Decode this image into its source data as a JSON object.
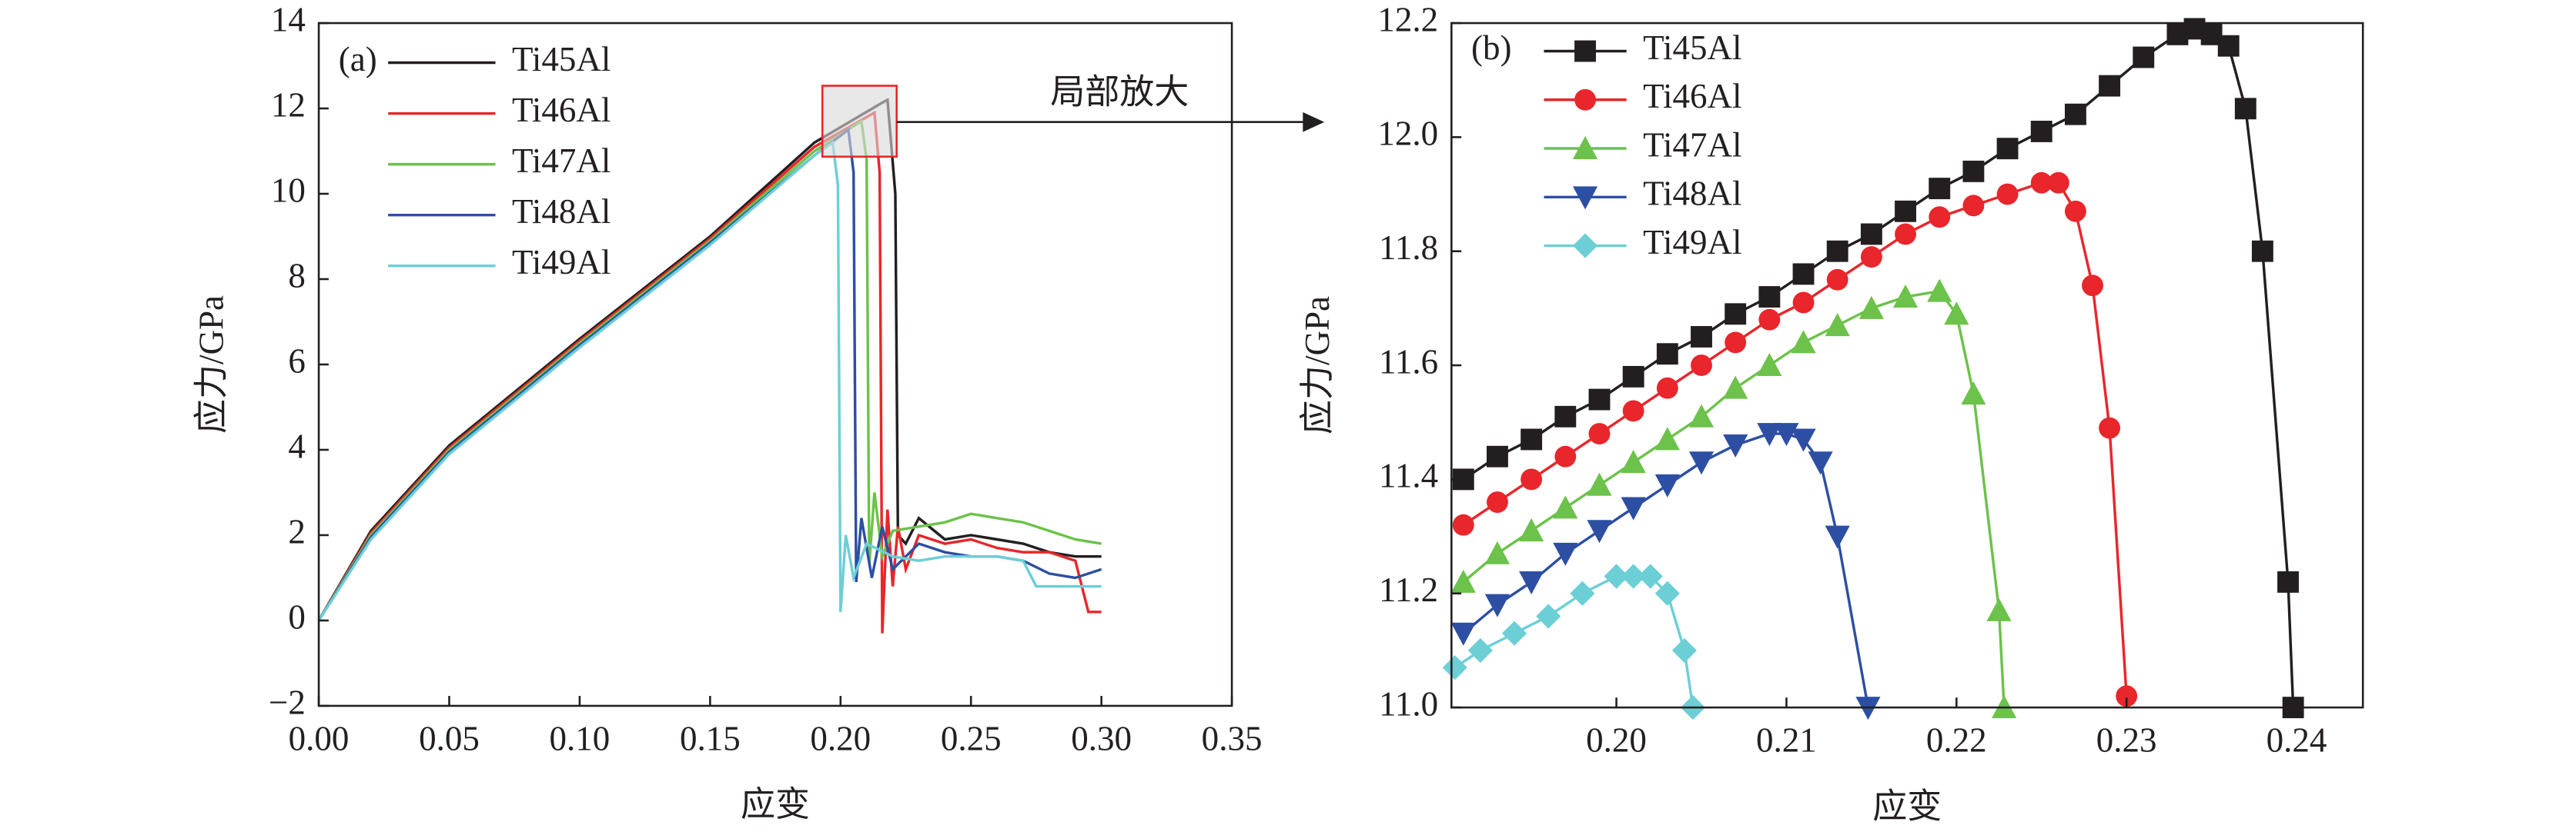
{
  "chart_data": [
    {
      "type": "line",
      "panel": "(a)",
      "x_label": "应变",
      "y_label": "应力/GPa",
      "annotation": "局部放大",
      "xlim": [
        0,
        0.35
      ],
      "ylim": [
        -2,
        14
      ],
      "xticks": [
        {
          "value": 0,
          "label": "0.00"
        },
        0.05,
        {
          "value": 0.1,
          "label": "0.10"
        },
        0.15,
        {
          "value": 0.2,
          "label": "0.20"
        },
        0.25,
        {
          "value": 0.3,
          "label": "0.30"
        },
        0.35
      ],
      "yticks": [
        {
          "value": -2,
          "label": "−2"
        },
        0,
        2,
        4,
        6,
        8,
        10,
        12,
        14
      ],
      "series": [
        {
          "name": "Ti45Al",
          "color": "#231f20",
          "x": [
            0,
            0.02,
            0.05,
            0.1,
            0.15,
            0.19,
            0.215,
            0.218,
            0.221,
            0.222,
            0.225,
            0.23,
            0.24,
            0.25,
            0.26,
            0.27,
            0.28,
            0.29,
            0.3
          ],
          "values": [
            0,
            2.1,
            4.1,
            6.6,
            9.0,
            11.2,
            12.1,
            12.2,
            10,
            2,
            1.8,
            2.4,
            1.9,
            2.0,
            1.9,
            1.8,
            1.6,
            1.5,
            1.5
          ]
        },
        {
          "name": "Ti46Al",
          "color": "#e8262b",
          "x": [
            0,
            0.02,
            0.05,
            0.1,
            0.15,
            0.19,
            0.213,
            0.215,
            0.216,
            0.218,
            0.22,
            0.222,
            0.225,
            0.23,
            0.24,
            0.25,
            0.26,
            0.27,
            0.28,
            0.29,
            0.295,
            0.3
          ],
          "values": [
            0,
            2.05,
            4.05,
            6.55,
            8.95,
            11.1,
            11.9,
            10.5,
            -0.3,
            2.6,
            0.8,
            2.2,
            1.2,
            2.0,
            1.8,
            1.9,
            1.7,
            1.6,
            1.6,
            1.4,
            0.2,
            0.2
          ]
        },
        {
          "name": "Ti47Al",
          "color": "#6cc24a",
          "x": [
            0,
            0.02,
            0.05,
            0.1,
            0.15,
            0.19,
            0.208,
            0.21,
            0.211,
            0.213,
            0.216,
            0.22,
            0.23,
            0.24,
            0.25,
            0.26,
            0.27,
            0.28,
            0.29,
            0.3
          ],
          "values": [
            0,
            2.0,
            4.0,
            6.5,
            8.9,
            11.0,
            11.7,
            10.8,
            1.3,
            3.0,
            1.5,
            2.1,
            2.2,
            2.3,
            2.5,
            2.4,
            2.3,
            2.1,
            1.9,
            1.8
          ]
        },
        {
          "name": "Ti48Al",
          "color": "#2d4fa3",
          "x": [
            0,
            0.02,
            0.05,
            0.1,
            0.15,
            0.19,
            0.203,
            0.205,
            0.206,
            0.208,
            0.212,
            0.216,
            0.22,
            0.23,
            0.24,
            0.25,
            0.26,
            0.27,
            0.28,
            0.29,
            0.3
          ],
          "values": [
            0,
            1.95,
            3.95,
            6.45,
            8.85,
            10.9,
            11.5,
            10.5,
            0.9,
            2.4,
            1.0,
            2.2,
            1.2,
            1.8,
            1.6,
            1.5,
            1.5,
            1.4,
            1.1,
            1.0,
            1.2
          ]
        },
        {
          "name": "Ti49Al",
          "color": "#6ccfd6",
          "x": [
            0,
            0.02,
            0.05,
            0.1,
            0.15,
            0.19,
            0.197,
            0.199,
            0.2,
            0.202,
            0.205,
            0.21,
            0.22,
            0.23,
            0.24,
            0.25,
            0.26,
            0.27,
            0.275,
            0.28,
            0.29,
            0.3
          ],
          "values": [
            0,
            1.9,
            3.9,
            6.4,
            8.8,
            10.9,
            11.2,
            10.2,
            0.2,
            2.0,
            1.0,
            1.8,
            1.5,
            1.4,
            1.5,
            1.5,
            1.5,
            1.4,
            0.8,
            0.8,
            0.8,
            0.8
          ]
        }
      ]
    },
    {
      "type": "line",
      "panel": "(b)",
      "x_label": "应变",
      "y_label": "应力/GPa",
      "xlim": [
        0.1903,
        0.2439
      ],
      "ylim": [
        11,
        12.2
      ],
      "xticks": [
        {
          "value": 0.2,
          "label": "0.20"
        },
        0.21,
        0.22,
        0.23,
        0.24
      ],
      "yticks": [
        {
          "value": 11,
          "label": "11.0"
        },
        11.2,
        11.4,
        11.6,
        11.8,
        {
          "value": 12,
          "label": "12.0"
        },
        12.2
      ],
      "series": [
        {
          "name": "Ti45Al",
          "color": "#231f20",
          "marker": "square",
          "x": [
            0.191,
            0.193,
            0.195,
            0.197,
            0.199,
            0.201,
            0.203,
            0.205,
            0.207,
            0.209,
            0.211,
            0.213,
            0.215,
            0.217,
            0.219,
            0.221,
            0.223,
            0.225,
            0.227,
            0.229,
            0.231,
            0.233,
            0.234,
            0.235,
            0.236,
            0.237,
            0.238,
            0.2395,
            0.2398
          ],
          "values": [
            11.4,
            11.44,
            11.47,
            11.51,
            11.54,
            11.58,
            11.62,
            11.65,
            11.69,
            11.72,
            11.76,
            11.8,
            11.83,
            11.87,
            11.91,
            11.94,
            11.98,
            12.01,
            12.04,
            12.09,
            12.14,
            12.18,
            12.19,
            12.18,
            12.16,
            12.05,
            11.8,
            11.22,
            11.0
          ]
        },
        {
          "name": "Ti46Al",
          "color": "#e8262b",
          "marker": "circle",
          "x": [
            0.191,
            0.193,
            0.195,
            0.197,
            0.199,
            0.201,
            0.203,
            0.205,
            0.207,
            0.209,
            0.211,
            0.213,
            0.215,
            0.217,
            0.219,
            0.221,
            0.223,
            0.225,
            0.226,
            0.227,
            0.228,
            0.229,
            0.23
          ],
          "values": [
            11.32,
            11.36,
            11.4,
            11.44,
            11.48,
            11.52,
            11.56,
            11.6,
            11.64,
            11.68,
            11.71,
            11.75,
            11.79,
            11.83,
            11.86,
            11.88,
            11.9,
            11.92,
            11.92,
            11.87,
            11.74,
            11.49,
            11.02
          ]
        },
        {
          "name": "Ti47Al",
          "color": "#6cc24a",
          "marker": "triangle-up",
          "x": [
            0.191,
            0.193,
            0.195,
            0.197,
            0.199,
            0.201,
            0.203,
            0.205,
            0.207,
            0.209,
            0.211,
            0.213,
            0.215,
            0.217,
            0.219,
            0.22,
            0.221,
            0.2225,
            0.2228
          ],
          "values": [
            11.22,
            11.27,
            11.31,
            11.35,
            11.39,
            11.43,
            11.47,
            11.51,
            11.56,
            11.6,
            11.64,
            11.67,
            11.7,
            11.72,
            11.73,
            11.69,
            11.55,
            11.17,
            11.0
          ]
        },
        {
          "name": "Ti48Al",
          "color": "#2d4fa3",
          "marker": "triangle-down",
          "x": [
            0.191,
            0.193,
            0.195,
            0.197,
            0.199,
            0.201,
            0.203,
            0.205,
            0.207,
            0.209,
            0.21,
            0.211,
            0.212,
            0.213,
            0.2148
          ],
          "values": [
            11.13,
            11.18,
            11.22,
            11.27,
            11.31,
            11.35,
            11.39,
            11.43,
            11.46,
            11.48,
            11.48,
            11.47,
            11.43,
            11.3,
            11.0
          ]
        },
        {
          "name": "Ti49Al",
          "color": "#6ccfd6",
          "marker": "diamond",
          "x": [
            0.1905,
            0.192,
            0.194,
            0.196,
            0.198,
            0.2,
            0.201,
            0.202,
            0.203,
            0.204,
            0.2045
          ],
          "values": [
            11.07,
            11.1,
            11.13,
            11.16,
            11.2,
            11.23,
            11.23,
            11.23,
            11.2,
            11.1,
            11.0
          ]
        }
      ]
    }
  ]
}
